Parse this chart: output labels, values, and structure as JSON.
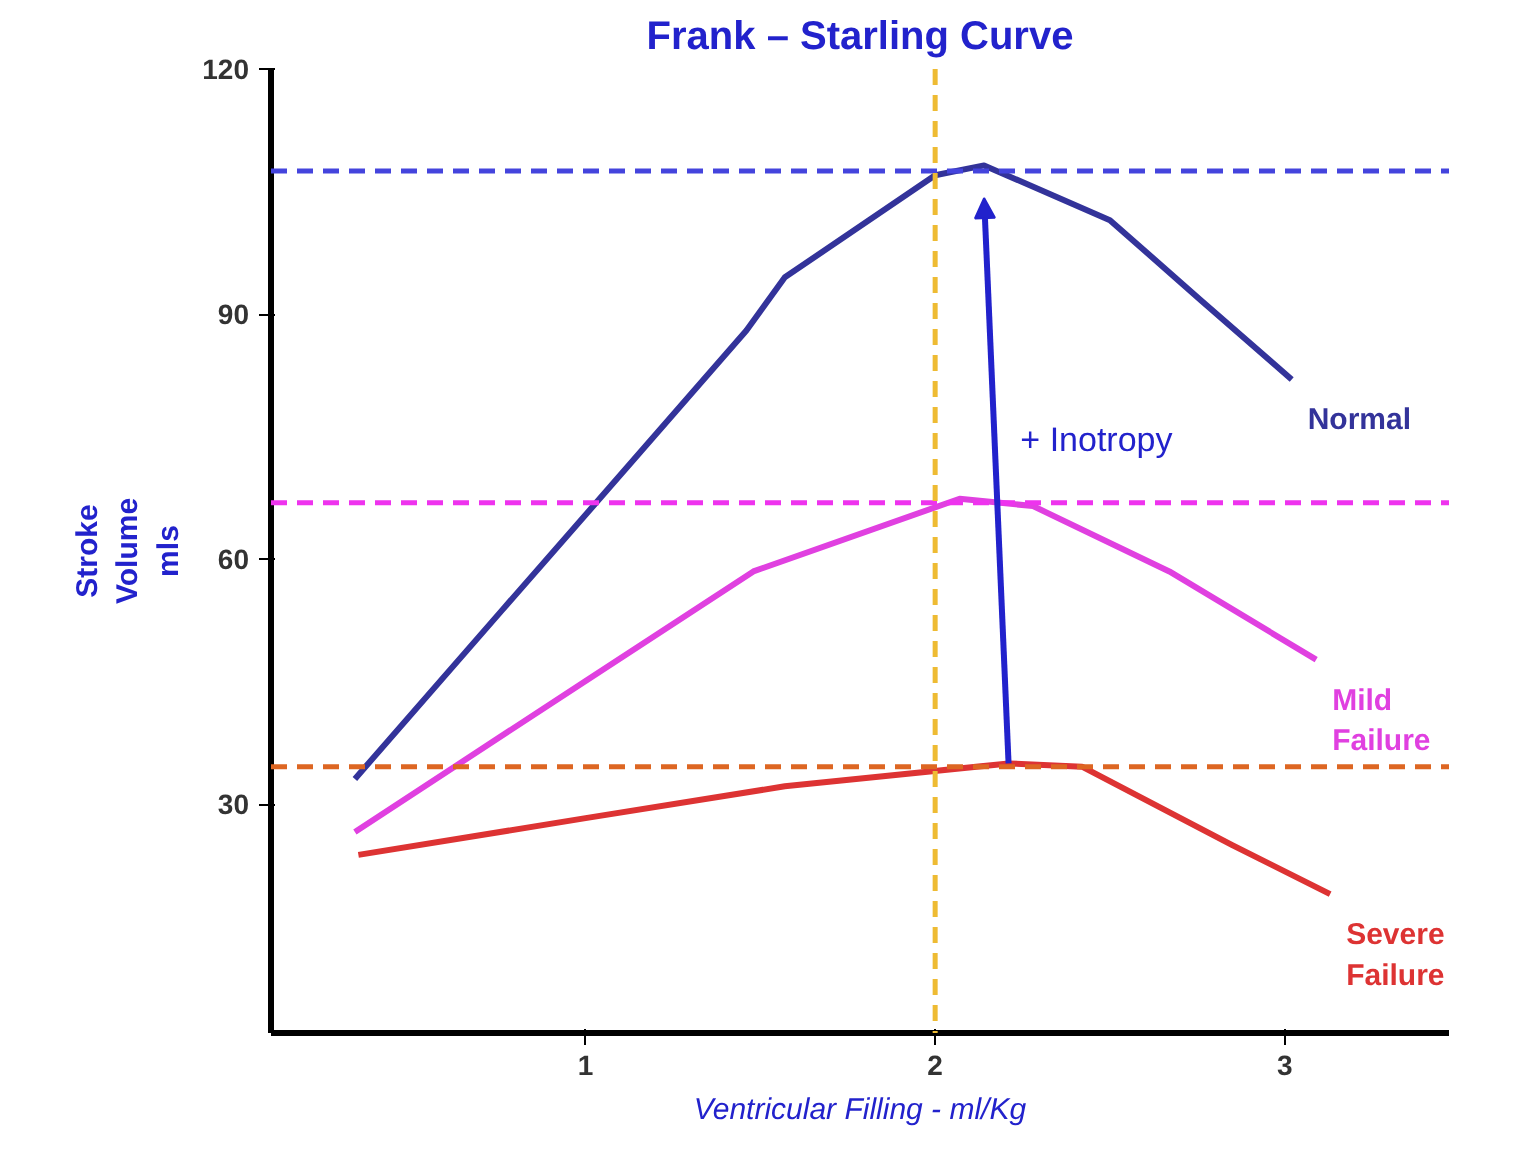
{
  "chart_data": {
    "type": "line",
    "title": "Frank – Starling Curve",
    "xlabel": "Ventricular Filling - ml/Kg",
    "ylabel": "Stroke\nVolume\nmls",
    "xlim": [
      0.1,
      3.47
    ],
    "ylim": [
      2,
      120
    ],
    "xticks": [
      1,
      2,
      3
    ],
    "yticks": [
      30,
      60,
      90,
      120
    ],
    "grid": false,
    "marker": "none",
    "line_style": "solid",
    "series": [
      {
        "name": "Normal",
        "color": "#33339a",
        "x": [
          0.34,
          0.76,
          1.03,
          1.46,
          1.57,
          2.0,
          2.14,
          2.5,
          2.76,
          3.02
        ],
        "values": [
          33.1,
          53.7,
          66.9,
          88,
          94.5,
          107,
          108.2,
          101.5,
          91.7,
          82
        ]
      },
      {
        "name": "Mild\nFailure",
        "color": "#e040e0",
        "x": [
          0.34,
          1.0,
          1.48,
          2.07,
          2.28,
          2.67,
          3.09
        ],
        "values": [
          26.6,
          45.1,
          58.5,
          67.4,
          66.5,
          58.5,
          47.7
        ]
      },
      {
        "name": "Severe\nFailure",
        "color": "#dd3333",
        "x": [
          0.35,
          1.0,
          1.57,
          2.21,
          2.42,
          2.85,
          3.13
        ],
        "values": [
          23.8,
          28.3,
          32.2,
          35,
          34.6,
          25,
          19
        ]
      }
    ],
    "ref_lines": [
      {
        "axis": "y",
        "value": 107.5,
        "color": "#4444dd",
        "line_style": "dashed"
      },
      {
        "axis": "y",
        "value": 66.9,
        "color": "#ee33ee",
        "line_style": "dashed"
      },
      {
        "axis": "y",
        "value": 34.6,
        "color": "#dd6622",
        "line_style": "dashed"
      },
      {
        "axis": "x",
        "value": 2,
        "color": "#eebb33",
        "line_style": "dashed"
      }
    ],
    "annotations": [
      "+ Inotropy"
    ]
  }
}
